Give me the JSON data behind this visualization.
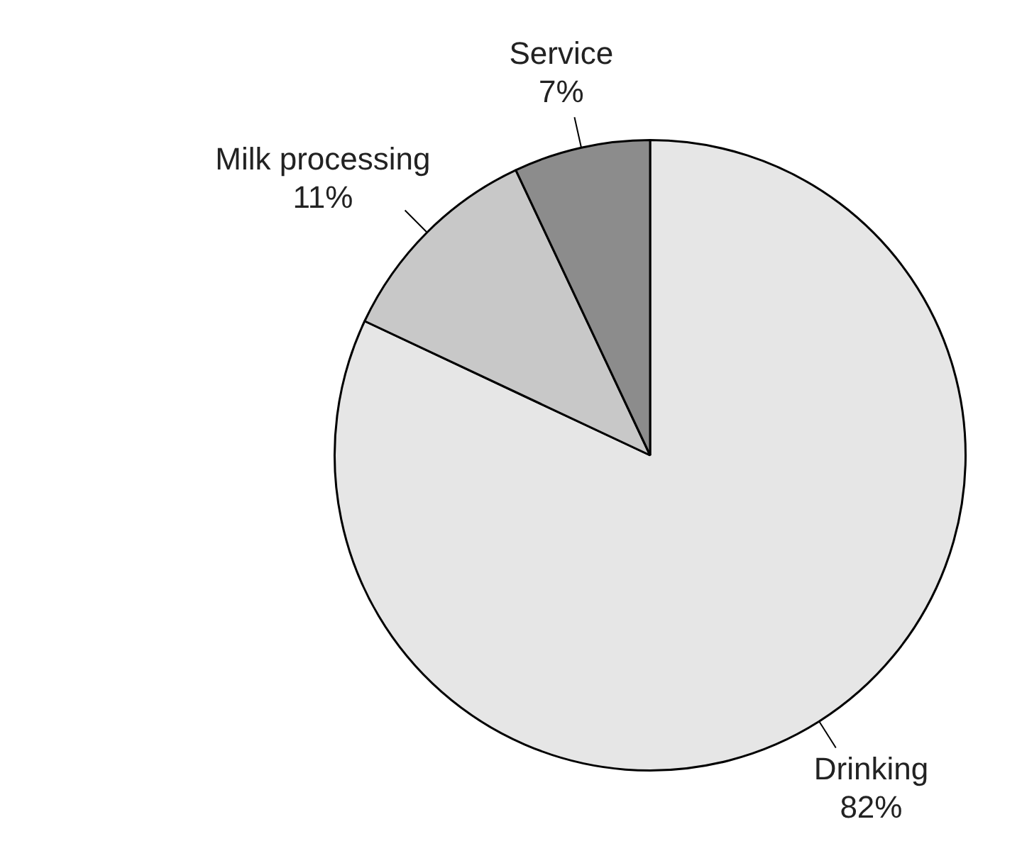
{
  "chart_data": {
    "type": "pie",
    "categories": [
      "Drinking",
      "Milk processing",
      "Service"
    ],
    "values": [
      82,
      11,
      7
    ],
    "value_labels": [
      "82%",
      "11%",
      "7%"
    ],
    "colors": [
      "#e6e6e6",
      "#c8c8c8",
      "#8c8c8c"
    ],
    "legend": false
  }
}
